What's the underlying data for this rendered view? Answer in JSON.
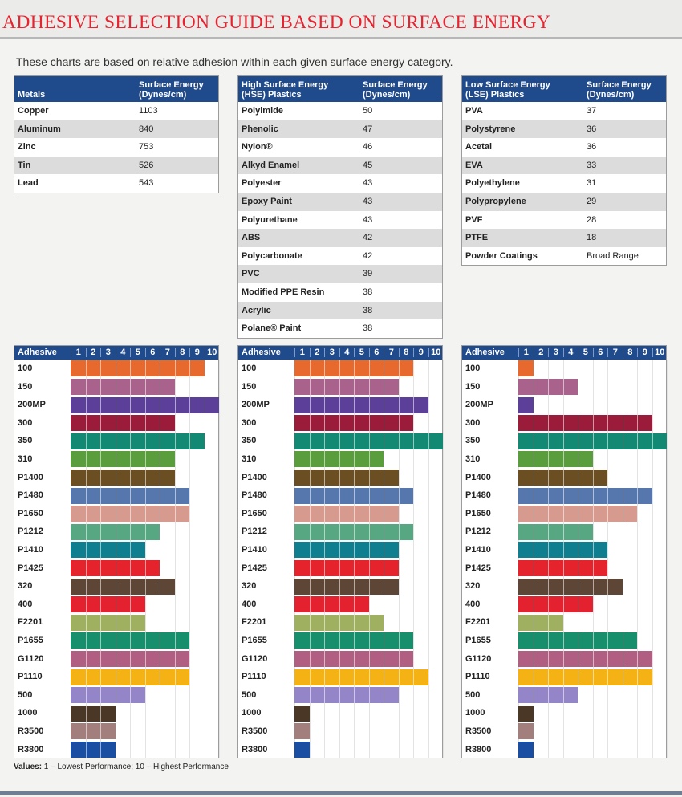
{
  "title": "ADHESIVE SELECTION GUIDE BASED ON SURFACE ENERGY",
  "intro": "These charts are based on relative adhesion within each given surface energy category.",
  "tables": [
    {
      "header1": "Metals",
      "header2": "Surface Energy\n(Dynes/cm)",
      "rows": [
        [
          "Copper",
          "1103"
        ],
        [
          "Aluminum",
          "840"
        ],
        [
          "Zinc",
          "753"
        ],
        [
          "Tin",
          "526"
        ],
        [
          "Lead",
          "543"
        ]
      ]
    },
    {
      "header1": "High Surface Energy\n(HSE) Plastics",
      "header2": "Surface Energy\n(Dynes/cm)",
      "rows": [
        [
          "Polyimide",
          "50"
        ],
        [
          "Phenolic",
          "47"
        ],
        [
          "Nylon®",
          "46"
        ],
        [
          "Alkyd Enamel",
          "45"
        ],
        [
          "Polyester",
          "43"
        ],
        [
          "Epoxy Paint",
          "43"
        ],
        [
          "Polyurethane",
          "43"
        ],
        [
          "ABS",
          "42"
        ],
        [
          "Polycarbonate",
          "42"
        ],
        [
          "PVC",
          "39"
        ],
        [
          "Modified PPE Resin",
          "38"
        ],
        [
          "Acrylic",
          "38"
        ],
        [
          "Polane® Paint",
          "38"
        ]
      ]
    },
    {
      "header1": "Low Surface Energy\n(LSE) Plastics",
      "header2": "Surface Energy\n(Dynes/cm)",
      "rows": [
        [
          "PVA",
          "37"
        ],
        [
          "Polystyrene",
          "36"
        ],
        [
          "Acetal",
          "36"
        ],
        [
          "EVA",
          "33"
        ],
        [
          "Polyethylene",
          "31"
        ],
        [
          "Polypropylene",
          "29"
        ],
        [
          "PVF",
          "28"
        ],
        [
          "PTFE",
          "18"
        ],
        [
          "Powder Coatings",
          "Broad Range"
        ]
      ]
    }
  ],
  "chart_data": [
    {
      "type": "bar",
      "orientation": "horizontal",
      "category_header": "Adhesive",
      "ticks": [
        "1",
        "2",
        "3",
        "4",
        "5",
        "6",
        "7",
        "8",
        "9",
        "10"
      ],
      "xlim": [
        0,
        10
      ],
      "categories": [
        "100",
        "150",
        "200MP",
        "300",
        "350",
        "310",
        "P1400",
        "P1480",
        "P1650",
        "P1212",
        "P1410",
        "P1425",
        "320",
        "400",
        "F2201",
        "P1655",
        "G1120",
        "P1110",
        "500",
        "1000",
        "R3500",
        "R3800"
      ],
      "values": [
        9,
        7,
        10,
        7,
        9,
        7,
        7,
        8,
        8,
        6,
        5,
        6,
        7,
        5,
        5,
        8,
        8,
        8,
        5,
        3,
        3,
        3
      ]
    },
    {
      "type": "bar",
      "orientation": "horizontal",
      "category_header": "Adhesive",
      "ticks": [
        "1",
        "2",
        "3",
        "4",
        "5",
        "6",
        "7",
        "8",
        "9",
        "10"
      ],
      "xlim": [
        0,
        10
      ],
      "categories": [
        "100",
        "150",
        "200MP",
        "300",
        "350",
        "310",
        "P1400",
        "P1480",
        "P1650",
        "P1212",
        "P1410",
        "P1425",
        "320",
        "400",
        "F2201",
        "P1655",
        "G1120",
        "P1110",
        "500",
        "1000",
        "R3500",
        "R3800"
      ],
      "values": [
        8,
        7,
        9,
        8,
        10,
        6,
        7,
        8,
        7,
        8,
        7,
        7,
        7,
        5,
        6,
        8,
        8,
        9,
        7,
        1,
        1,
        1
      ]
    },
    {
      "type": "bar",
      "orientation": "horizontal",
      "category_header": "Adhesive",
      "ticks": [
        "1",
        "2",
        "3",
        "4",
        "5",
        "6",
        "7",
        "8",
        "9",
        "10"
      ],
      "xlim": [
        0,
        10
      ],
      "categories": [
        "100",
        "150",
        "200MP",
        "300",
        "350",
        "310",
        "P1400",
        "P1480",
        "P1650",
        "P1212",
        "P1410",
        "P1425",
        "320",
        "400",
        "F2201",
        "P1655",
        "G1120",
        "P1110",
        "500",
        "1000",
        "R3500",
        "R3800"
      ],
      "values": [
        1,
        4,
        1,
        9,
        10,
        5,
        6,
        9,
        8,
        5,
        6,
        6,
        7,
        5,
        3,
        8,
        9,
        9,
        4,
        1,
        1,
        1
      ]
    }
  ],
  "bar_colors": [
    "#e8692e",
    "#a9628c",
    "#5b3f98",
    "#9a1b3a",
    "#138872",
    "#5a9d3c",
    "#6b4f22",
    "#5577ae",
    "#d69a8f",
    "#56a782",
    "#0f7e8e",
    "#e4232d",
    "#5d4636",
    "#e4212e",
    "#9fb160",
    "#178f6c",
    "#b05f82",
    "#f5b215",
    "#9385c7",
    "#4b3726",
    "#a27e7c",
    "#1a4ea3"
  ],
  "legend_bold": "Values:",
  "legend_text": " 1 – Lowest Performance; 10 – Highest Performance"
}
